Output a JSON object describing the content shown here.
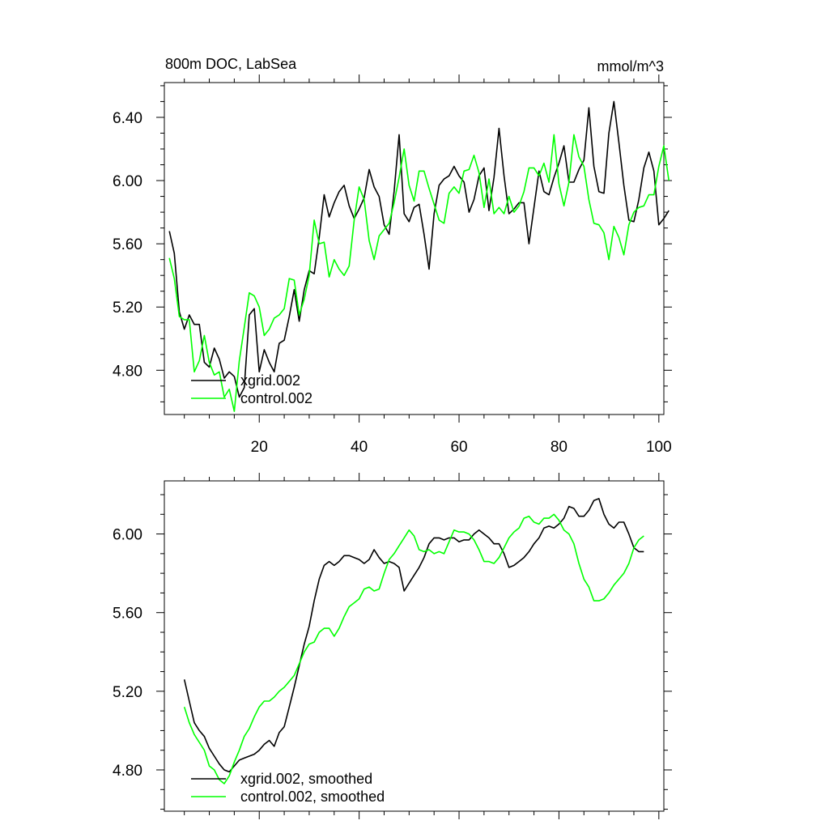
{
  "chart_data": [
    {
      "type": "line",
      "title": "800m DOC, LabSea",
      "units": "mmol/m^3",
      "xlabel": "",
      "ylabel": "",
      "xlim": [
        1,
        101
      ],
      "ylim": [
        4.52,
        6.62
      ],
      "xticks": [
        20,
        40,
        60,
        80,
        100
      ],
      "xtick_labels": [
        "20",
        "40",
        "60",
        "80",
        "100"
      ],
      "yticks": [
        4.8,
        5.2,
        5.6,
        6.0,
        6.4
      ],
      "ytick_labels": [
        "4.80",
        "5.20",
        "5.60",
        "6.00",
        "6.40"
      ],
      "grid": false,
      "legend_position": "bottom-left",
      "x_start": 2,
      "series": [
        {
          "name": "xgrid.002",
          "color": "#000000",
          "values": [
            5.68,
            5.54,
            5.17,
            5.06,
            5.15,
            5.09,
            5.09,
            4.85,
            4.82,
            4.94,
            4.87,
            4.75,
            4.79,
            4.76,
            4.63,
            4.69,
            5.15,
            5.19,
            4.79,
            4.93,
            4.85,
            4.79,
            4.97,
            4.99,
            5.14,
            5.31,
            5.11,
            5.31,
            5.43,
            5.41,
            5.64,
            5.91,
            5.77,
            5.86,
            5.93,
            5.97,
            5.84,
            5.76,
            5.82,
            5.89,
            6.07,
            5.96,
            5.9,
            5.72,
            5.66,
            5.93,
            6.29,
            5.79,
            5.74,
            5.83,
            5.85,
            5.66,
            5.44,
            5.79,
            5.97,
            6.01,
            6.03,
            6.09,
            6.03,
            5.99,
            5.8,
            5.88,
            6.03,
            6.08,
            5.81,
            6.02,
            6.33,
            6.03,
            5.79,
            5.82,
            5.86,
            5.86,
            5.6,
            5.83,
            6.06,
            5.93,
            5.91,
            6.02,
            6.11,
            6.22,
            5.99,
            5.99,
            6.07,
            6.13,
            6.46,
            6.09,
            5.93,
            5.92,
            6.3,
            6.5,
            6.24,
            5.97,
            5.75,
            5.74,
            5.88,
            6.08,
            6.18,
            6.06,
            5.72,
            5.76,
            5.81
          ]
        },
        {
          "name": "control.002",
          "color": "#00ff00",
          "values": [
            5.51,
            5.38,
            5.14,
            5.12,
            5.12,
            4.79,
            4.86,
            5.02,
            4.85,
            4.77,
            4.79,
            4.63,
            4.68,
            4.54,
            4.86,
            5.07,
            5.29,
            5.27,
            5.2,
            5.02,
            5.06,
            5.13,
            5.15,
            5.19,
            5.38,
            5.37,
            5.15,
            5.25,
            5.4,
            5.75,
            5.6,
            5.61,
            5.39,
            5.5,
            5.44,
            5.4,
            5.46,
            5.75,
            5.96,
            5.88,
            5.62,
            5.5,
            5.65,
            5.69,
            5.73,
            5.86,
            6.02,
            6.2,
            5.97,
            5.87,
            6.06,
            6.06,
            5.95,
            5.85,
            5.75,
            5.73,
            5.92,
            5.96,
            5.92,
            6.06,
            6.07,
            6.16,
            6.05,
            5.83,
            6.01,
            5.79,
            5.83,
            5.79,
            5.9,
            5.8,
            5.84,
            5.93,
            6.08,
            6.08,
            6.03,
            6.11,
            5.99,
            6.29,
            5.98,
            5.84,
            5.99,
            6.29,
            6.15,
            6.09,
            5.88,
            5.73,
            5.72,
            5.67,
            5.5,
            5.71,
            5.64,
            5.53,
            5.72,
            5.8,
            5.83,
            5.84,
            5.91,
            5.91,
            6.09,
            6.22,
            6.0
          ]
        }
      ]
    },
    {
      "type": "line",
      "title": "",
      "xlabel": "",
      "ylabel": "",
      "xlim": [
        1,
        101
      ],
      "ylim": [
        4.59,
        6.27
      ],
      "xticks": [
        20,
        40,
        60,
        80,
        100
      ],
      "xtick_labels": [],
      "yticks": [
        4.8,
        5.2,
        5.6,
        6.0
      ],
      "ytick_labels": [
        "4.80",
        "5.20",
        "5.60",
        "6.00"
      ],
      "grid": false,
      "legend_position": "bottom-left",
      "x_start": 5,
      "series": [
        {
          "name": "xgrid.002, smoothed",
          "color": "#000000",
          "values": [
            5.26,
            5.15,
            5.04,
            5.0,
            4.97,
            4.91,
            4.87,
            4.83,
            4.8,
            4.79,
            4.82,
            4.85,
            4.86,
            4.87,
            4.88,
            4.9,
            4.93,
            4.95,
            4.92,
            4.99,
            5.02,
            5.12,
            5.22,
            5.33,
            5.44,
            5.53,
            5.66,
            5.77,
            5.84,
            5.86,
            5.84,
            5.86,
            5.89,
            5.89,
            5.88,
            5.87,
            5.85,
            5.87,
            5.92,
            5.88,
            5.85,
            5.86,
            5.85,
            5.83,
            5.71,
            5.75,
            5.79,
            5.83,
            5.88,
            5.95,
            5.98,
            5.98,
            5.97,
            5.98,
            5.98,
            5.96,
            5.97,
            5.97,
            6.0,
            6.02,
            6.0,
            5.98,
            5.95,
            5.95,
            5.9,
            5.83,
            5.84,
            5.86,
            5.88,
            5.91,
            5.95,
            5.98,
            6.03,
            6.04,
            6.03,
            6.05,
            6.08,
            6.14,
            6.13,
            6.09,
            6.09,
            6.12,
            6.17,
            6.18,
            6.1,
            6.05,
            6.03,
            6.06,
            6.06,
            6.0,
            5.93,
            5.91,
            5.91
          ]
        },
        {
          "name": "control.002, smoothed",
          "color": "#00ff00",
          "values": [
            5.12,
            5.04,
            4.98,
            4.94,
            4.9,
            4.82,
            4.8,
            4.75,
            4.73,
            4.77,
            4.84,
            4.9,
            4.97,
            5.01,
            5.07,
            5.12,
            5.15,
            5.15,
            5.17,
            5.2,
            5.22,
            5.25,
            5.28,
            5.34,
            5.4,
            5.44,
            5.45,
            5.5,
            5.52,
            5.52,
            5.48,
            5.52,
            5.58,
            5.63,
            5.65,
            5.67,
            5.72,
            5.73,
            5.71,
            5.72,
            5.8,
            5.87,
            5.9,
            5.94,
            5.98,
            6.02,
            5.99,
            5.92,
            5.91,
            5.92,
            5.9,
            5.91,
            5.9,
            5.96,
            6.02,
            6.01,
            6.01,
            6.0,
            5.97,
            5.92,
            5.86,
            5.86,
            5.85,
            5.88,
            5.93,
            5.98,
            6.01,
            6.03,
            6.08,
            6.09,
            6.06,
            6.05,
            6.08,
            6.08,
            6.1,
            6.07,
            6.02,
            6.0,
            5.95,
            5.85,
            5.77,
            5.73,
            5.66,
            5.66,
            5.67,
            5.7,
            5.74,
            5.77,
            5.8,
            5.85,
            5.93,
            5.97,
            5.99
          ]
        }
      ]
    }
  ]
}
